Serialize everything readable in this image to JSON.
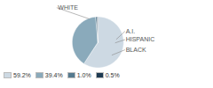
{
  "chart_data": {
    "type": "pie",
    "categories": [
      "WHITE",
      "HISPANIC",
      "BLACK",
      "A.I."
    ],
    "values": [
      59.2,
      39.4,
      1.0,
      0.5
    ],
    "value_labels": [
      "59.2%",
      "39.4%",
      "1.0%",
      "0.5%"
    ],
    "colors": [
      "#cdd9e3",
      "#8aaabb",
      "#557a8f",
      "#1e3a52"
    ],
    "legend": "lower left"
  }
}
